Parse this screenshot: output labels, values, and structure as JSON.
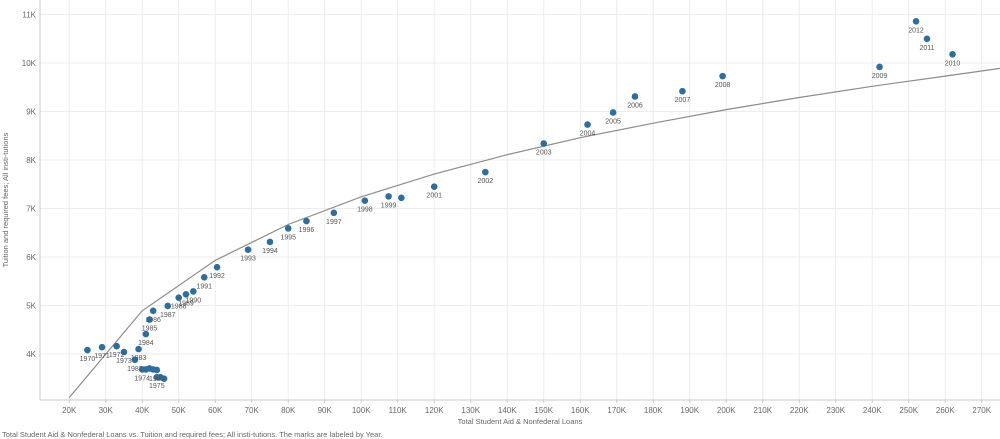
{
  "caption": "Total Student Aid & Nonfederal Loans vs. Tuition and required fees; All insti-tutions.  The marks are labeled by Year.",
  "chart_data": {
    "type": "scatter",
    "xlabel": "Total Student Aid & Nonfederal Loans",
    "ylabel": "Tuition and required fees; All insti-tutions",
    "xlim": [
      12000,
      275000
    ],
    "ylim": [
      3050,
      11300
    ],
    "x_ticks": [
      20000,
      30000,
      40000,
      50000,
      60000,
      70000,
      80000,
      90000,
      100000,
      110000,
      120000,
      130000,
      140000,
      150000,
      160000,
      170000,
      180000,
      190000,
      200000,
      210000,
      220000,
      230000,
      240000,
      250000,
      260000,
      270000
    ],
    "x_tick_labels": [
      "20K",
      "30K",
      "40K",
      "50K",
      "60K",
      "70K",
      "80K",
      "90K",
      "100K",
      "110K",
      "120K",
      "130K",
      "140K",
      "150K",
      "160K",
      "170K",
      "180K",
      "190K",
      "200K",
      "210K",
      "220K",
      "230K",
      "240K",
      "250K",
      "260K",
      "270K"
    ],
    "y_ticks": [
      4000,
      5000,
      6000,
      7000,
      8000,
      9000,
      10000,
      11000
    ],
    "y_tick_labels": [
      "4K",
      "5K",
      "6K",
      "7K",
      "8K",
      "9K",
      "10K",
      "11K"
    ],
    "grid": true,
    "marker_color": "#2e6e9e",
    "trend_color": "#8c8c8c",
    "trend_line": {
      "x": [
        20000,
        40000,
        60000,
        80000,
        100000,
        120000,
        140000,
        160000,
        180000,
        200000,
        220000,
        240000,
        260000,
        275000
      ],
      "y": [
        3100,
        4890,
        5930,
        6670,
        7240,
        7710,
        8110,
        8460,
        8760,
        9040,
        9290,
        9520,
        9730,
        9890
      ]
    },
    "points": [
      {
        "year": "1970",
        "x": 25000,
        "y": 4080,
        "label": "1970"
      },
      {
        "year": "1971",
        "x": 29000,
        "y": 4140,
        "label": "1971"
      },
      {
        "year": "1972",
        "x": 33000,
        "y": 4160,
        "label": "1972"
      },
      {
        "year": "1973",
        "x": 35000,
        "y": 4040,
        "label": "1973"
      },
      {
        "year": "1974",
        "x": 40000,
        "y": 3680,
        "label": "1974"
      },
      {
        "year": "1975",
        "x": 44000,
        "y": 3520,
        "label": "1975"
      },
      {
        "year": "",
        "x": 41000,
        "y": 3680,
        "label": ""
      },
      {
        "year": "",
        "x": 42000,
        "y": 3700,
        "label": ""
      },
      {
        "year": "",
        "x": 43000,
        "y": 3680,
        "label": ""
      },
      {
        "year": "",
        "x": 45000,
        "y": 3520,
        "label": ""
      },
      {
        "year": "",
        "x": 46000,
        "y": 3490,
        "label": ""
      },
      {
        "year": "1981",
        "x": 44000,
        "y": 3670,
        "label": "1981"
      },
      {
        "year": "1982",
        "x": 38000,
        "y": 3880,
        "label": "1982"
      },
      {
        "year": "1983",
        "x": 39000,
        "y": 4100,
        "label": "1983"
      },
      {
        "year": "1984",
        "x": 41000,
        "y": 4410,
        "label": "1984"
      },
      {
        "year": "1985",
        "x": 42000,
        "y": 4710,
        "label": "1985"
      },
      {
        "year": "1986",
        "x": 43000,
        "y": 4890,
        "label": "1986"
      },
      {
        "year": "1987",
        "x": 47000,
        "y": 4990,
        "label": "1987"
      },
      {
        "year": "1988",
        "x": 50000,
        "y": 5160,
        "label": "1988"
      },
      {
        "year": "1989",
        "x": 52000,
        "y": 5230,
        "label": "1989"
      },
      {
        "year": "1990",
        "x": 54000,
        "y": 5290,
        "label": "1990"
      },
      {
        "year": "1991",
        "x": 57000,
        "y": 5580,
        "label": "1991"
      },
      {
        "year": "1992",
        "x": 60500,
        "y": 5790,
        "label": "1992"
      },
      {
        "year": "1993",
        "x": 69000,
        "y": 6150,
        "label": "1993"
      },
      {
        "year": "1994",
        "x": 75000,
        "y": 6310,
        "label": "1994"
      },
      {
        "year": "1995",
        "x": 80000,
        "y": 6590,
        "label": "1995"
      },
      {
        "year": "1996",
        "x": 85000,
        "y": 6740,
        "label": "1996"
      },
      {
        "year": "1997",
        "x": 92500,
        "y": 6910,
        "label": "1997"
      },
      {
        "year": "1998",
        "x": 101000,
        "y": 7160,
        "label": "1998"
      },
      {
        "year": "1999",
        "x": 107500,
        "y": 7250,
        "label": "1999"
      },
      {
        "year": "",
        "x": 111000,
        "y": 7220,
        "label": ""
      },
      {
        "year": "2001",
        "x": 120000,
        "y": 7450,
        "label": "2001"
      },
      {
        "year": "2002",
        "x": 134000,
        "y": 7750,
        "label": "2002"
      },
      {
        "year": "2003",
        "x": 150000,
        "y": 8340,
        "label": "2003"
      },
      {
        "year": "2004",
        "x": 162000,
        "y": 8730,
        "label": "2004"
      },
      {
        "year": "2005",
        "x": 169000,
        "y": 8980,
        "label": "2005"
      },
      {
        "year": "2006",
        "x": 175000,
        "y": 9310,
        "label": "2006"
      },
      {
        "year": "2007",
        "x": 188000,
        "y": 9420,
        "label": "2007"
      },
      {
        "year": "2008",
        "x": 199000,
        "y": 9730,
        "label": "2008"
      },
      {
        "year": "2009",
        "x": 242000,
        "y": 9920,
        "label": "2009"
      },
      {
        "year": "2010",
        "x": 262000,
        "y": 10180,
        "label": "2010"
      },
      {
        "year": "2011",
        "x": 255000,
        "y": 10500,
        "label": "2011"
      },
      {
        "year": "2012",
        "x": 252000,
        "y": 10860,
        "label": "2012"
      }
    ]
  }
}
